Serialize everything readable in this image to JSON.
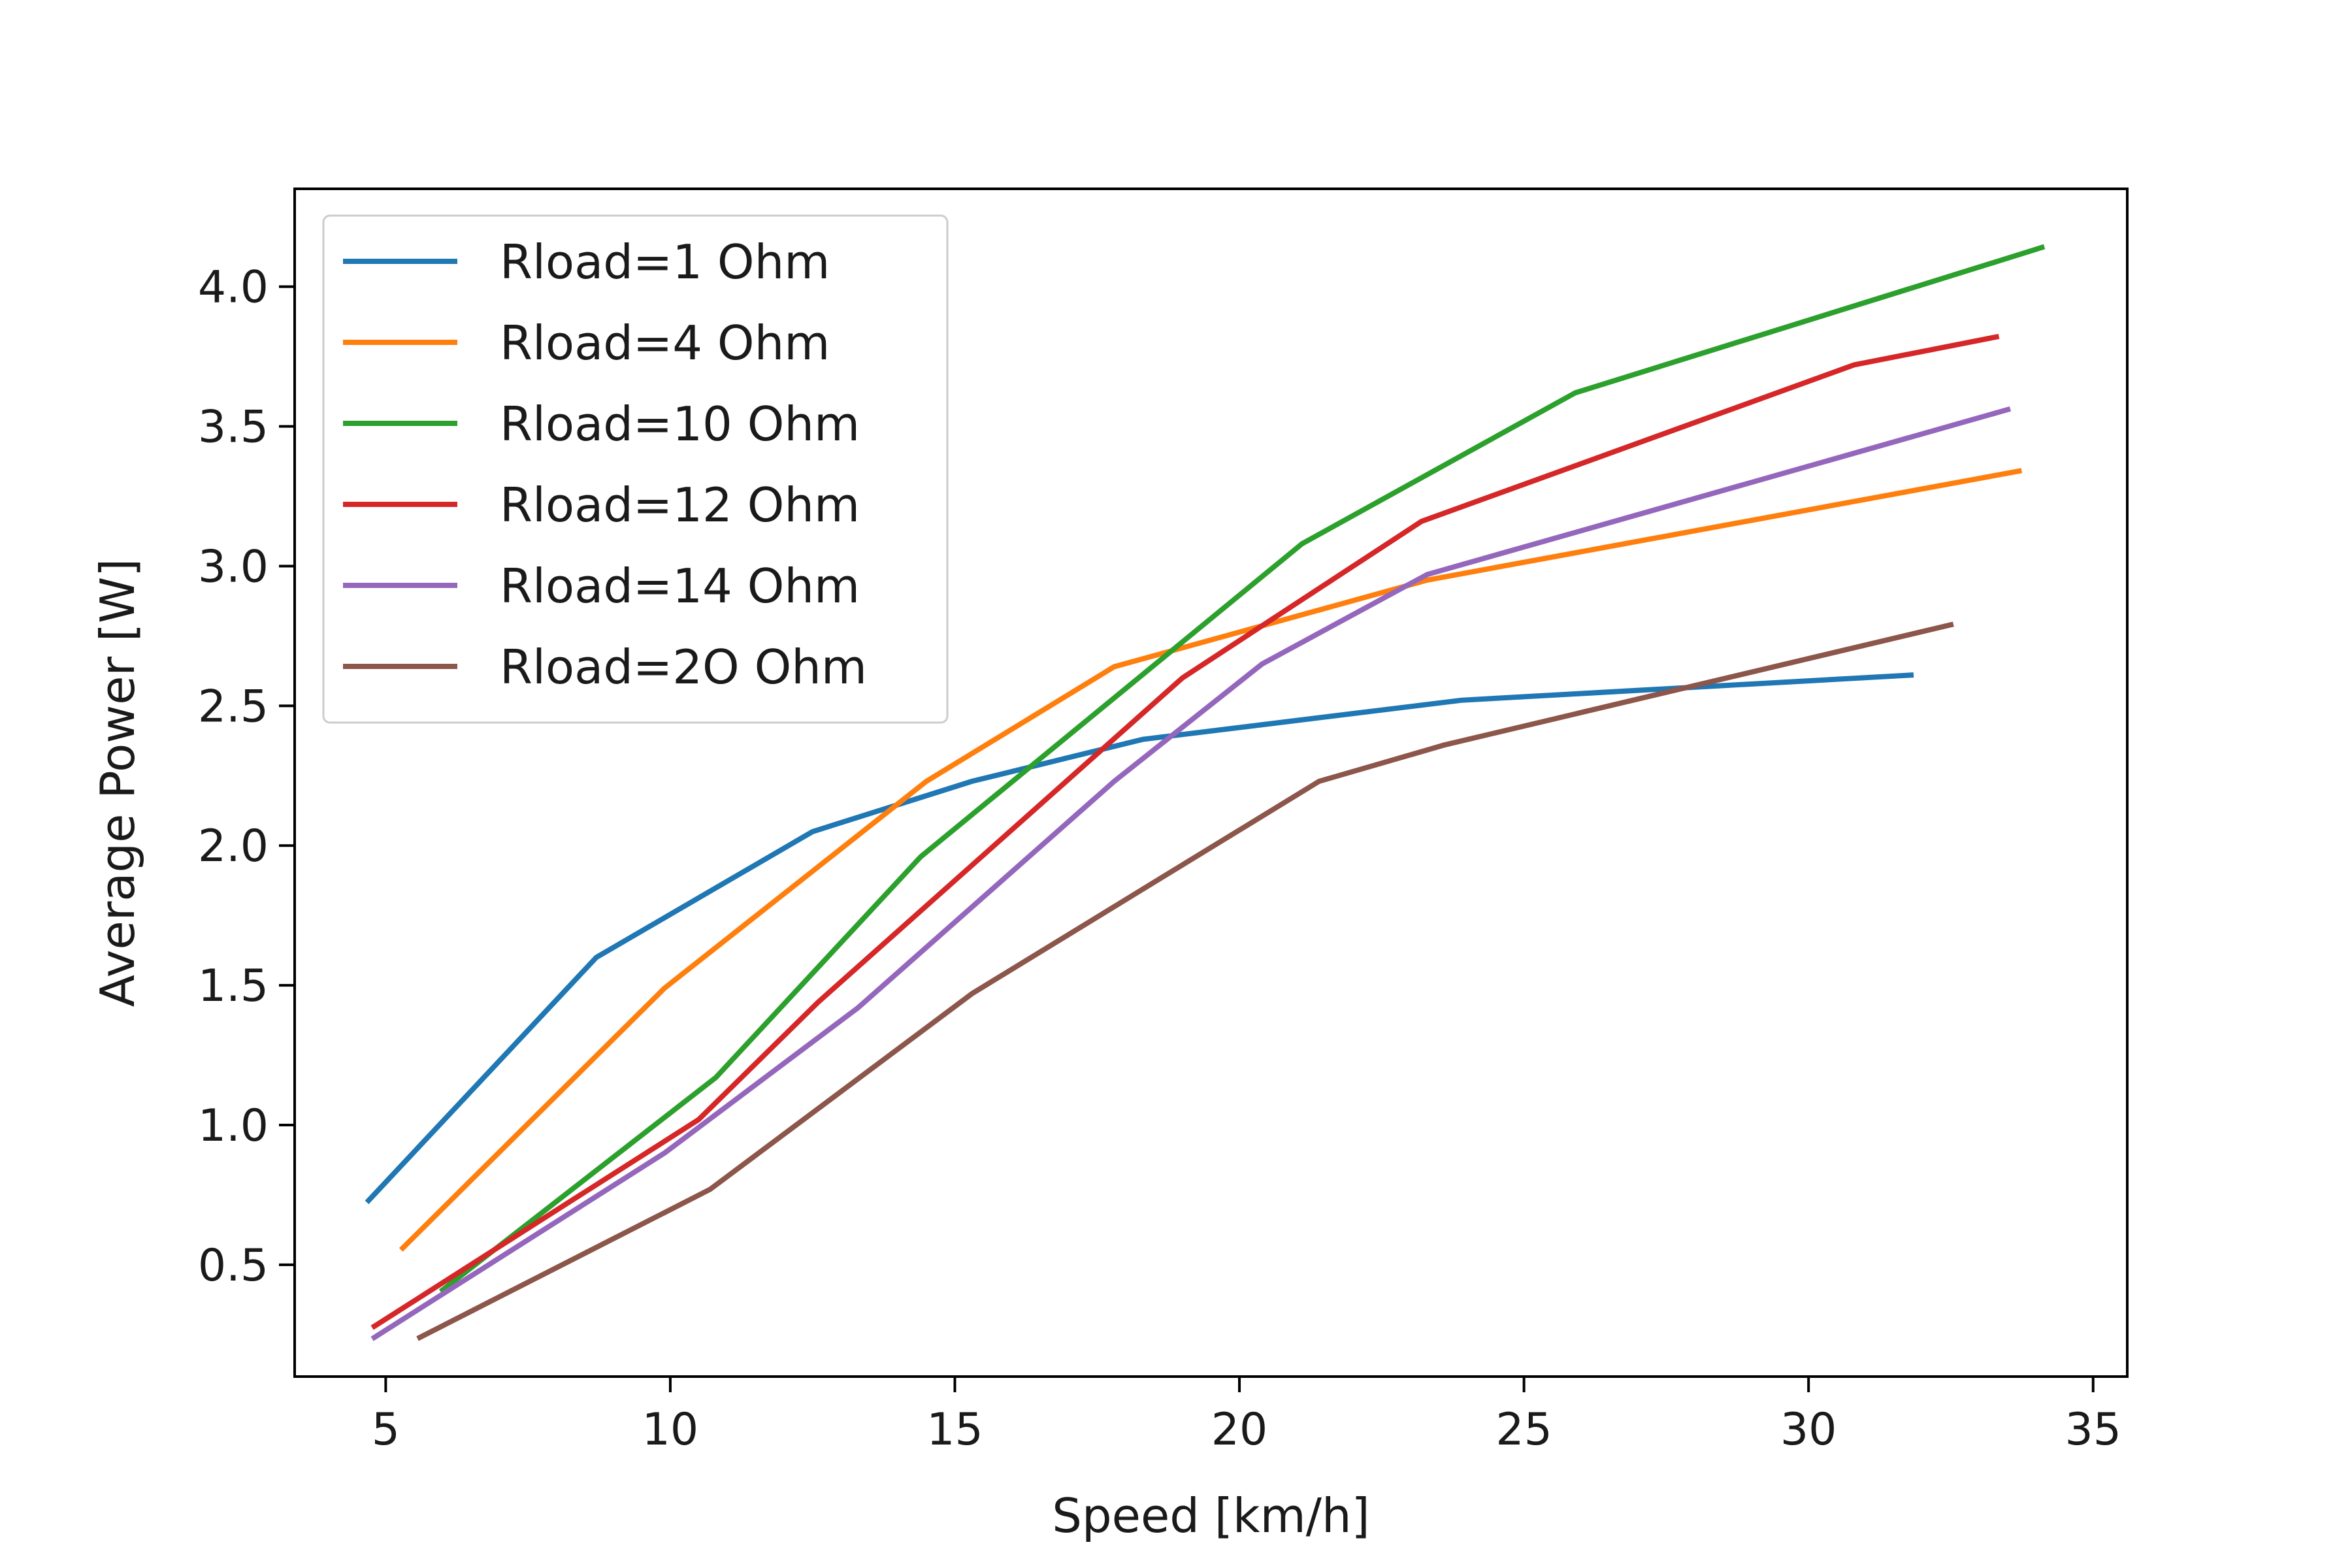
{
  "chart_data": {
    "type": "line",
    "title": "",
    "xlabel": "Speed [km/h]",
    "ylabel": "Average Power [W]",
    "xlim": [
      3.4,
      35.6
    ],
    "ylim": [
      0.1,
      4.35
    ],
    "xticks": [
      5,
      10,
      15,
      20,
      25,
      30,
      35
    ],
    "yticks": [
      0.5,
      1.0,
      1.5,
      2.0,
      2.5,
      3.0,
      3.5,
      4.0
    ],
    "xtick_labels": [
      "5",
      "10",
      "15",
      "20",
      "25",
      "30",
      "35"
    ],
    "ytick_labels": [
      "0.5",
      "1.0",
      "1.5",
      "2.0",
      "2.5",
      "3.0",
      "3.5",
      "4.0"
    ],
    "grid": false,
    "legend_position": "upper-left",
    "series": [
      {
        "name": "Rload=1 Ohm",
        "color": "#1f77b4",
        "x": [
          4.7,
          8.7,
          12.5,
          15.3,
          18.3,
          23.9,
          31.8
        ],
        "y": [
          0.73,
          1.6,
          2.05,
          2.23,
          2.38,
          2.52,
          2.61
        ]
      },
      {
        "name": "Rload=4 Ohm",
        "color": "#ff7f0e",
        "x": [
          5.3,
          9.9,
          14.5,
          17.8,
          23.3,
          33.7
        ],
        "y": [
          0.56,
          1.49,
          2.23,
          2.64,
          2.95,
          3.34
        ]
      },
      {
        "name": "Rload=10 Ohm",
        "color": "#2ca02c",
        "x": [
          6.0,
          10.8,
          14.4,
          21.1,
          25.9,
          34.1
        ],
        "y": [
          0.41,
          1.17,
          1.96,
          3.08,
          3.62,
          4.14
        ]
      },
      {
        "name": "Rload=12 Ohm",
        "color": "#d62728",
        "x": [
          4.8,
          10.5,
          12.6,
          19.0,
          23.2,
          30.8,
          33.3
        ],
        "y": [
          0.28,
          1.02,
          1.44,
          2.6,
          3.16,
          3.72,
          3.82
        ]
      },
      {
        "name": "Rload=14 Ohm",
        "color": "#9467bd",
        "x": [
          4.8,
          9.9,
          13.3,
          17.8,
          20.4,
          23.3,
          33.5
        ],
        "y": [
          0.24,
          0.9,
          1.42,
          2.23,
          2.65,
          2.97,
          3.56
        ]
      },
      {
        "name": "Rload=2O Ohm",
        "color": "#8c564b",
        "x": [
          5.6,
          10.7,
          15.3,
          21.4,
          23.6,
          32.5
        ],
        "y": [
          0.24,
          0.77,
          1.47,
          2.23,
          2.36,
          2.79
        ]
      }
    ]
  }
}
